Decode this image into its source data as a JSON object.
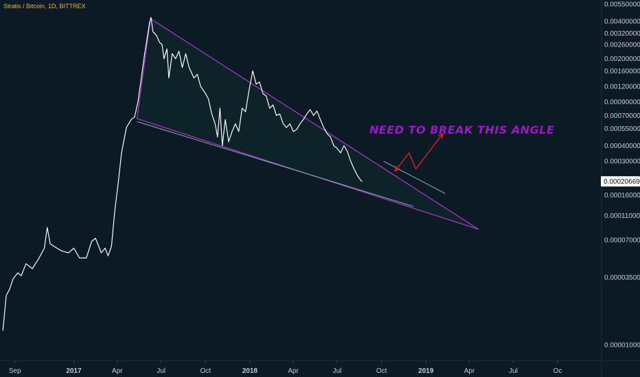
{
  "header": {
    "title": "Stratis / Bitcoin, 1D, BITTREX"
  },
  "annotation": {
    "text": "NEED  TO  BREAK THIS ANGLE"
  },
  "price_tag": {
    "value": "0.00020669"
  },
  "colors": {
    "background": "#0c1a26",
    "price_line": "#ffffff",
    "triangle": "#b03bd6",
    "parallel_support": "#8fb0c0",
    "arrow": "#e0262b",
    "annotation": "#9b19c9",
    "title": "#e8b73a"
  },
  "chart_data": {
    "type": "line",
    "title": "Stratis / Bitcoin, 1D, BITTREX",
    "xlabel": "",
    "ylabel": "",
    "y_scale": "log",
    "ylim": [
      8.5e-06,
      0.0055
    ],
    "xlim": [
      "2016-08-01",
      "2019-12-31"
    ],
    "grid": false,
    "x_tick_labels": [
      {
        "date": "2016-09-01",
        "label": "Sep",
        "bold": false
      },
      {
        "date": "2017-01-01",
        "label": "2017",
        "bold": true
      },
      {
        "date": "2017-04-01",
        "label": "Apr",
        "bold": false
      },
      {
        "date": "2017-07-01",
        "label": "Jul",
        "bold": false
      },
      {
        "date": "2017-10-01",
        "label": "Oct",
        "bold": false
      },
      {
        "date": "2018-01-01",
        "label": "2018",
        "bold": true
      },
      {
        "date": "2018-04-01",
        "label": "Apr",
        "bold": false
      },
      {
        "date": "2018-07-01",
        "label": "Jul",
        "bold": false
      },
      {
        "date": "2018-10-01",
        "label": "Oct",
        "bold": false
      },
      {
        "date": "2019-01-01",
        "label": "2019",
        "bold": true
      },
      {
        "date": "2019-04-01",
        "label": "Apr",
        "bold": false
      },
      {
        "date": "2019-07-01",
        "label": "Jul",
        "bold": false
      },
      {
        "date": "2019-10-01",
        "label": "Oc",
        "bold": false
      }
    ],
    "y_tick_labels": [
      "0.00550000",
      "0.00400000",
      "0.00320000",
      "0.00260000",
      "0.00200000",
      "0.00160000",
      "0.00120000",
      "0.00090000",
      "0.00070000",
      "0.00055000",
      "0.00040000",
      "0.00030000",
      "0.00020669",
      "0.00016000",
      "0.00011000",
      "0.00007000",
      "0.00003500",
      "0.00001000"
    ],
    "y_tick_values": [
      0.0055,
      0.004,
      0.0032,
      0.0026,
      0.002,
      0.0016,
      0.0012,
      0.0009,
      0.0007,
      0.00055,
      0.0004,
      0.0003,
      0.00020669,
      0.00016,
      0.00011,
      7e-05,
      3.5e-05,
      1e-05
    ],
    "series": [
      {
        "points": [
          [
            "2016-08-07",
            1.3e-05
          ],
          [
            "2016-08-14",
            2.5e-05
          ],
          [
            "2016-08-21",
            2.8e-05
          ],
          [
            "2016-08-28",
            3.4e-05
          ],
          [
            "2016-09-07",
            3.8e-05
          ],
          [
            "2016-09-14",
            3.6e-05
          ],
          [
            "2016-09-24",
            4.5e-05
          ],
          [
            "2016-10-07",
            4.1e-05
          ],
          [
            "2016-10-21",
            5e-05
          ],
          [
            "2016-11-01",
            6e-05
          ],
          [
            "2016-11-07",
            8.8e-05
          ],
          [
            "2016-11-13",
            6.5e-05
          ],
          [
            "2016-11-27",
            6e-05
          ],
          [
            "2016-12-07",
            5.7e-05
          ],
          [
            "2016-12-21",
            5.5e-05
          ],
          [
            "2017-01-01",
            6e-05
          ],
          [
            "2017-01-13",
            5e-05
          ],
          [
            "2017-01-27",
            5e-05
          ],
          [
            "2017-02-07",
            6.8e-05
          ],
          [
            "2017-02-15",
            7.2e-05
          ],
          [
            "2017-02-27",
            5.5e-05
          ],
          [
            "2017-03-07",
            6e-05
          ],
          [
            "2017-03-13",
            5.2e-05
          ],
          [
            "2017-03-20",
            6.2e-05
          ],
          [
            "2017-03-27",
            0.00012
          ],
          [
            "2017-04-03",
            0.0002
          ],
          [
            "2017-04-10",
            0.00035
          ],
          [
            "2017-04-20",
            0.00056
          ],
          [
            "2017-04-30",
            0.00065
          ],
          [
            "2017-05-07",
            0.00068
          ],
          [
            "2017-05-14",
            0.0009
          ],
          [
            "2017-05-21",
            0.0014
          ],
          [
            "2017-05-28",
            0.0022
          ],
          [
            "2017-06-07",
            0.0039
          ],
          [
            "2017-06-10",
            0.0043
          ],
          [
            "2017-06-14",
            0.0033
          ],
          [
            "2017-06-21",
            0.0031
          ],
          [
            "2017-06-28",
            0.0027
          ],
          [
            "2017-07-03",
            0.0026
          ],
          [
            "2017-07-07",
            0.002
          ],
          [
            "2017-07-13",
            0.0024
          ],
          [
            "2017-07-17",
            0.0014
          ],
          [
            "2017-07-24",
            0.0022
          ],
          [
            "2017-07-31",
            0.002
          ],
          [
            "2017-08-07",
            0.0023
          ],
          [
            "2017-08-14",
            0.0017
          ],
          [
            "2017-08-21",
            0.0022
          ],
          [
            "2017-08-28",
            0.0017
          ],
          [
            "2017-09-07",
            0.0014
          ],
          [
            "2017-09-14",
            0.0015
          ],
          [
            "2017-09-21",
            0.0012
          ],
          [
            "2017-10-01",
            0.00105
          ],
          [
            "2017-10-07",
            0.00095
          ],
          [
            "2017-10-14",
            0.00072
          ],
          [
            "2017-10-21",
            0.0006
          ],
          [
            "2017-10-26",
            0.00047
          ],
          [
            "2017-10-31",
            0.0008
          ],
          [
            "2017-11-05",
            0.0004
          ],
          [
            "2017-11-11",
            0.00065
          ],
          [
            "2017-11-18",
            0.00043
          ],
          [
            "2017-11-25",
            0.00052
          ],
          [
            "2017-12-02",
            0.0006
          ],
          [
            "2017-12-09",
            0.00052
          ],
          [
            "2017-12-16",
            0.0008
          ],
          [
            "2017-12-23",
            0.00075
          ],
          [
            "2017-12-30",
            0.0011
          ],
          [
            "2018-01-07",
            0.0016
          ],
          [
            "2018-01-14",
            0.00125
          ],
          [
            "2018-01-21",
            0.0013
          ],
          [
            "2018-01-28",
            0.00105
          ],
          [
            "2018-02-04",
            0.001
          ],
          [
            "2018-02-11",
            0.0008
          ],
          [
            "2018-02-18",
            0.00085
          ],
          [
            "2018-02-25",
            0.0007
          ],
          [
            "2018-03-04",
            0.00072
          ],
          [
            "2018-03-11",
            0.0006
          ],
          [
            "2018-03-18",
            0.00056
          ],
          [
            "2018-03-25",
            0.0006
          ],
          [
            "2018-04-01",
            0.00052
          ],
          [
            "2018-04-08",
            0.00054
          ],
          [
            "2018-04-15",
            0.0006
          ],
          [
            "2018-04-22",
            0.00065
          ],
          [
            "2018-04-29",
            0.00072
          ],
          [
            "2018-05-06",
            0.00078
          ],
          [
            "2018-05-13",
            0.0007
          ],
          [
            "2018-05-20",
            0.00076
          ],
          [
            "2018-05-27",
            0.00065
          ],
          [
            "2018-06-03",
            0.00056
          ],
          [
            "2018-06-10",
            0.0005
          ],
          [
            "2018-06-17",
            0.00047
          ],
          [
            "2018-06-24",
            0.0004
          ],
          [
            "2018-07-01",
            0.00038
          ],
          [
            "2018-07-08",
            0.00035
          ],
          [
            "2018-07-15",
            0.0004
          ],
          [
            "2018-07-22",
            0.00036
          ],
          [
            "2018-07-29",
            0.0003
          ],
          [
            "2018-08-05",
            0.00026
          ],
          [
            "2018-08-12",
            0.00023
          ],
          [
            "2018-08-19",
            0.00021
          ],
          [
            "2018-08-22",
            0.00020669
          ]
        ]
      }
    ],
    "overlays": {
      "triangle": [
        [
          "2017-06-09",
          0.0042
        ],
        [
          "2019-04-20",
          8.5e-05
        ],
        [
          "2017-05-12",
          0.00066
        ]
      ],
      "parallel_support": [
        [
          "2017-05-12",
          0.000625
        ],
        [
          "2018-12-06",
          0.00013
        ]
      ],
      "upper_parallel": [
        [
          "2018-10-05",
          0.0003
        ],
        [
          "2019-02-10",
          0.000165
        ]
      ],
      "arrow": [
        [
          "2018-10-29",
          0.00025
        ],
        [
          "2018-11-27",
          0.00035
        ],
        [
          "2018-12-11",
          0.00026
        ],
        [
          "2019-02-05",
          0.0005
        ]
      ]
    }
  }
}
